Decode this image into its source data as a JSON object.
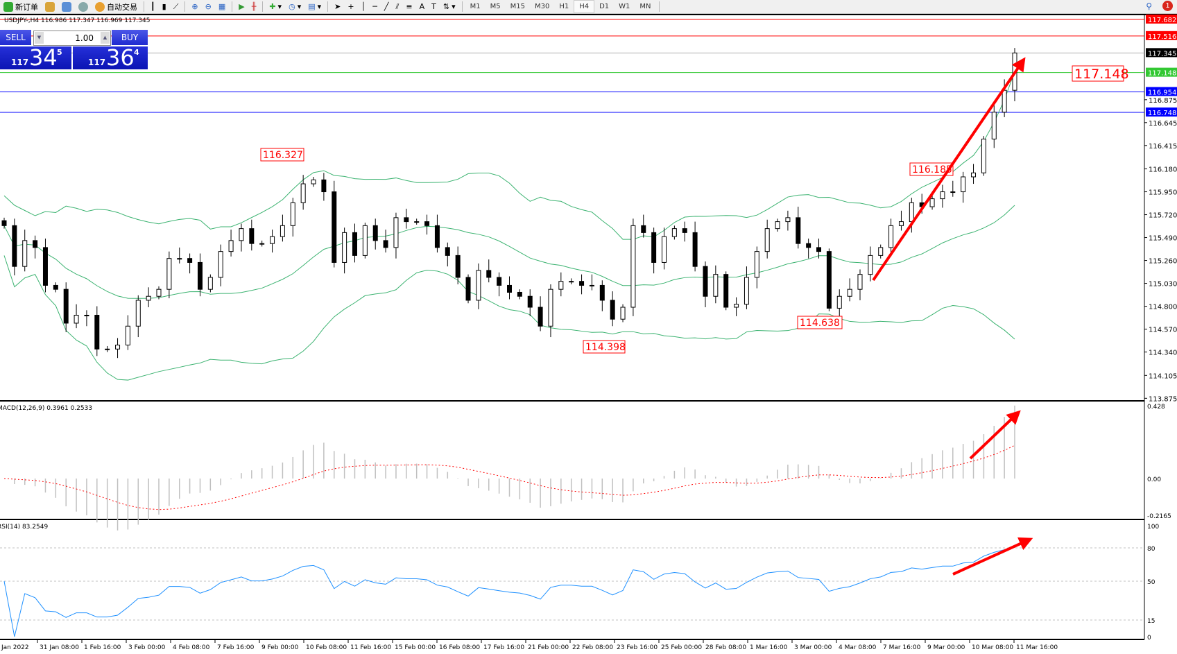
{
  "toolbar": {
    "new_order": "新订单",
    "auto_trading": "自动交易",
    "timeframes": [
      "M1",
      "M5",
      "M15",
      "M30",
      "H1",
      "H4",
      "D1",
      "W1",
      "MN"
    ],
    "active_timeframe": "H4",
    "notification_count": "1"
  },
  "chart_header": "USDJPY-,H4  116.986 117.347 116.969 117.345",
  "one_click": {
    "sell_label": "SELL",
    "buy_label": "BUY",
    "lot": "1.00",
    "sell_prefix": "117",
    "sell_big": "34",
    "sell_pip": "5",
    "buy_prefix": "117",
    "buy_big": "36",
    "buy_pip": "4"
  },
  "chart_data": {
    "type": "candlestick",
    "symbol": "USDJPY-",
    "timeframe": "H4",
    "ylim": [
      113.875,
      117.682
    ],
    "price_ticks": [
      "116.875",
      "116.645",
      "116.415",
      "116.180",
      "115.950",
      "115.720",
      "115.490",
      "115.260",
      "115.030",
      "114.800",
      "114.570",
      "114.340",
      "114.105",
      "113.875"
    ],
    "closes": [
      115.61,
      115.2,
      115.46,
      115.39,
      115.01,
      114.97,
      114.63,
      114.71,
      114.71,
      114.37,
      114.37,
      114.41,
      114.6,
      114.86,
      114.9,
      114.97,
      115.28,
      115.28,
      115.24,
      114.97,
      115.09,
      115.35,
      115.46,
      115.58,
      115.43,
      115.43,
      115.5,
      115.61,
      115.84,
      116.03,
      116.07,
      115.95,
      115.24,
      115.54,
      115.31,
      115.61,
      115.46,
      115.39,
      115.69,
      115.65,
      115.65,
      115.61,
      115.39,
      115.31,
      115.09,
      114.86,
      115.16,
      115.09,
      115.01,
      114.94,
      114.9,
      114.79,
      114.6,
      114.97,
      115.05,
      115.05,
      115.01,
      115.01,
      114.86,
      114.67,
      114.79,
      115.61,
      115.54,
      115.24,
      115.5,
      115.58,
      115.54,
      115.2,
      114.9,
      115.12,
      114.79,
      114.82,
      115.09,
      115.35,
      115.58,
      115.65,
      115.69,
      115.43,
      115.39,
      115.35,
      114.78,
      114.9,
      114.97,
      115.12,
      115.31,
      115.39,
      115.61,
      115.65,
      115.84,
      115.8,
      115.88,
      115.95,
      115.95,
      116.1,
      116.14,
      116.48,
      116.75,
      116.97,
      117.345
    ],
    "levels": [
      {
        "price": "117.682",
        "color": "#ff0000"
      },
      {
        "price": "117.516",
        "color": "#ff0000"
      },
      {
        "price": "117.345",
        "color": "#000000"
      },
      {
        "price": "117.148",
        "color": "#32c832"
      },
      {
        "price": "116.954",
        "color": "#0000ff"
      },
      {
        "price": "116.748",
        "color": "#0000ff"
      }
    ],
    "annotations": [
      "116.327",
      "116.185",
      "114.398",
      "114.638",
      "117.148"
    ],
    "bollinger_color": "#3cb371",
    "macd": {
      "label": "MACD(12,26,9) 0.3961 0.2533",
      "ticks": [
        "0.428",
        "0.00",
        "-0.2165"
      ],
      "ylim": [
        -0.2165,
        0.428
      ],
      "signal_color": "#ff0000",
      "hist_color": "#c0c0c0"
    },
    "rsi": {
      "label": "RSI(14) 83.2549",
      "ticks": [
        "100",
        "80",
        "50",
        "15",
        "0"
      ],
      "levels": [
        80,
        50,
        15
      ],
      "ylim": [
        0,
        100
      ],
      "color": "#1e90ff"
    },
    "time_labels": [
      "Jan 2022",
      "31 Jan 08:00",
      "1 Feb 16:00",
      "3 Feb 00:00",
      "4 Feb 08:00",
      "7 Feb 16:00",
      "9 Feb 00:00",
      "10 Feb 08:00",
      "11 Feb 16:00",
      "15 Feb 00:00",
      "16 Feb 08:00",
      "17 Feb 16:00",
      "21 Feb 00:00",
      "22 Feb 08:00",
      "23 Feb 16:00",
      "25 Feb 00:00",
      "28 Feb 08:00",
      "1 Mar 16:00",
      "3 Mar 00:00",
      "4 Mar 08:00",
      "7 Mar 16:00",
      "9 Mar 00:00",
      "10 Mar 08:00",
      "11 Mar 16:00"
    ],
    "arrow_color": "#ff0000"
  }
}
